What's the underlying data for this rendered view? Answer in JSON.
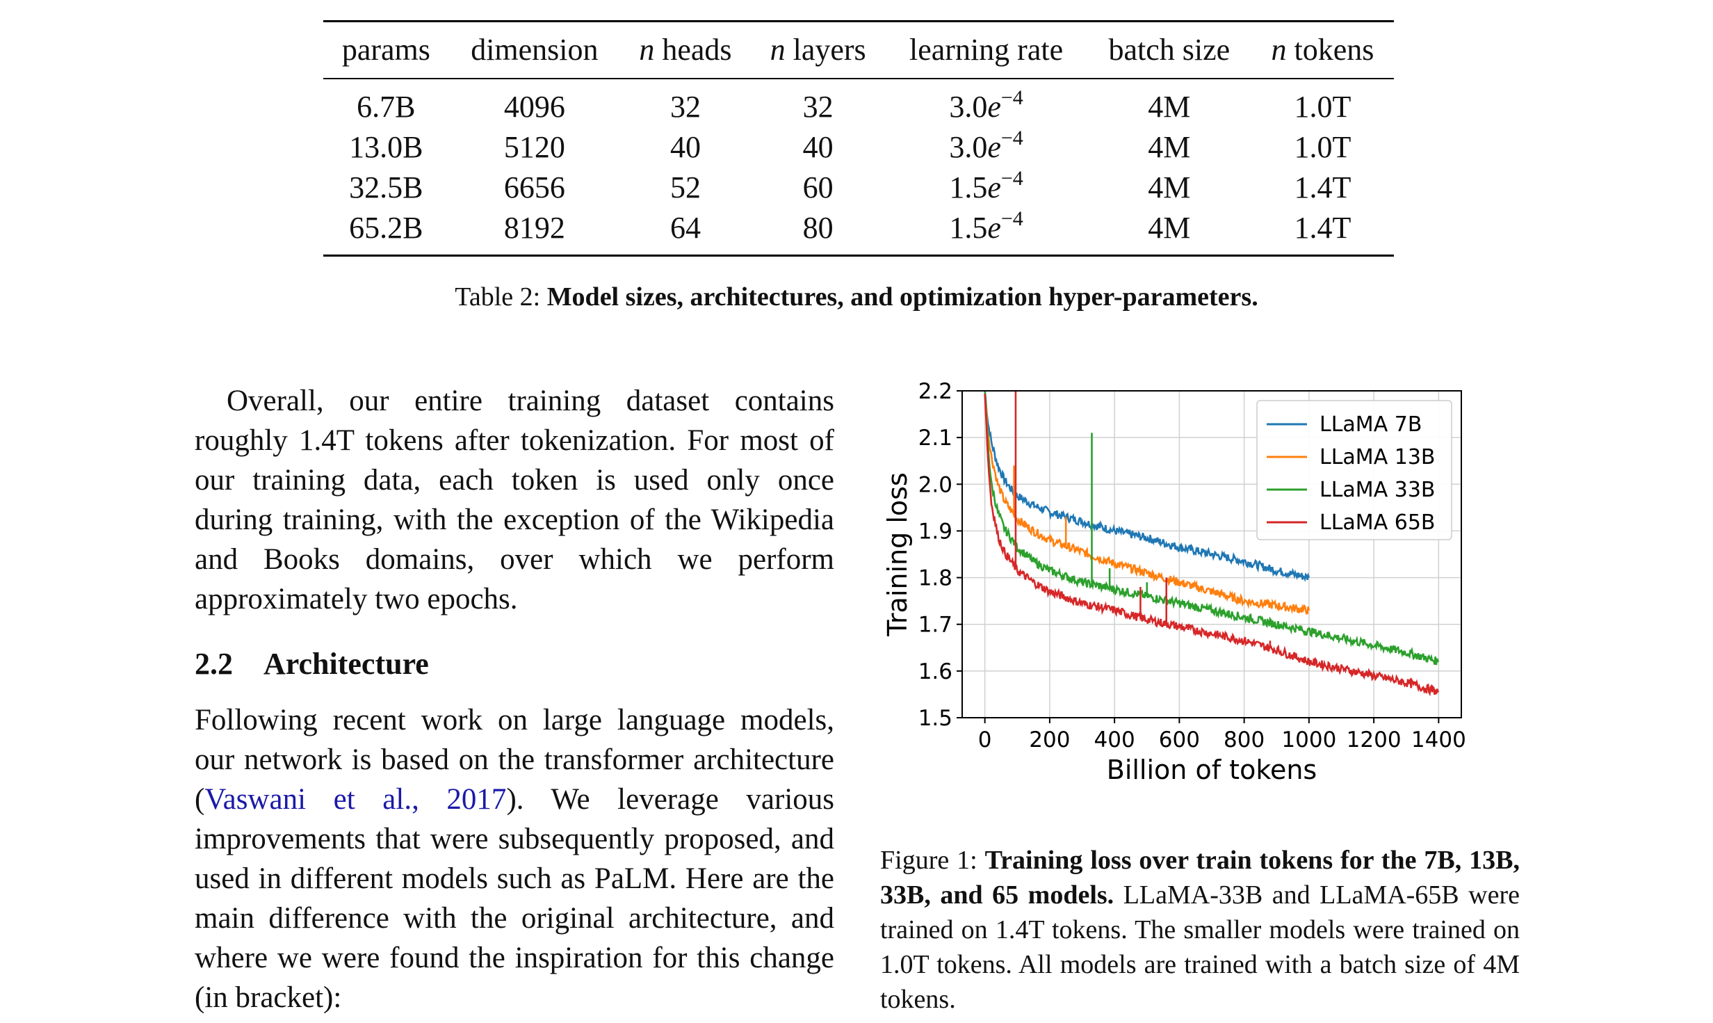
{
  "table": {
    "headers": [
      "params",
      "dimension",
      "n heads",
      "n layers",
      "learning rate",
      "batch size",
      "n tokens"
    ],
    "rows": [
      [
        "6.7B",
        "4096",
        "32",
        "32",
        "3.0e−4",
        "4M",
        "1.0T"
      ],
      [
        "13.0B",
        "5120",
        "40",
        "40",
        "3.0e−4",
        "4M",
        "1.0T"
      ],
      [
        "32.5B",
        "6656",
        "52",
        "60",
        "1.5e−4",
        "4M",
        "1.4T"
      ],
      [
        "65.2B",
        "8192",
        "64",
        "80",
        "1.5e−4",
        "4M",
        "1.4T"
      ]
    ],
    "caption_prefix": "Table 2: ",
    "caption_bold": "Model sizes, architectures, and optimization hyper-parameters."
  },
  "text": {
    "para1": "Overall, our entire training dataset contains roughly 1.4T tokens after tokenization. For most of our training data, each token is used only once during training, with the exception of the Wikipedia and Books domains, over which we perform approximately two epochs.",
    "section_number": "2.2",
    "section_title": "Architecture",
    "para2_before": "Following recent work on large language models, our network is based on the transformer architecture (",
    "para2_cite": "Vaswani et al., 2017",
    "para2_after": "). We leverage various improvements that were subsequently proposed, and used in different models such as PaLM. Here are the main difference with the original architecture, and where we were found the inspiration for this change (in bracket):"
  },
  "figure": {
    "caption_prefix": "Figure 1: ",
    "caption_bold": "Training loss over train tokens for the 7B, 13B, 33B, and 65 models.",
    "caption_rest": " LLaMA-33B and LLaMA-65B were trained on 1.4T tokens. The smaller models were trained on 1.0T tokens. All models are trained with a batch size of 4M tokens."
  },
  "chart_data": {
    "type": "line",
    "title": "",
    "xlabel": "Billion of tokens",
    "ylabel": "Training loss",
    "xlim": [
      -70,
      1470
    ],
    "ylim": [
      1.5,
      2.2
    ],
    "xticks": [
      0,
      200,
      400,
      600,
      800,
      1000,
      1200,
      1400
    ],
    "yticks": [
      1.5,
      1.6,
      1.7,
      1.8,
      1.9,
      2.0,
      2.1,
      2.2
    ],
    "xtick_labels": [
      "0",
      "200",
      "400",
      "600",
      "800",
      "1000",
      "1200",
      "1400"
    ],
    "ytick_labels": [
      "1.5",
      "1.6",
      "1.7",
      "1.8",
      "1.9",
      "2.0",
      "2.1",
      "2.2"
    ],
    "grid": true,
    "legend_position": "top-right",
    "series": [
      {
        "name": "LLaMA 7B",
        "color": "#1f77b4",
        "x": [
          0,
          10,
          20,
          40,
          60,
          80,
          100,
          150,
          200,
          300,
          400,
          500,
          600,
          700,
          800,
          900,
          1000
        ],
        "y": [
          2.2,
          2.13,
          2.09,
          2.04,
          2.01,
          1.99,
          1.975,
          1.955,
          1.94,
          1.92,
          1.9,
          1.885,
          1.865,
          1.85,
          1.835,
          1.815,
          1.8
        ],
        "spikes": []
      },
      {
        "name": "LLaMA 13B",
        "color": "#ff7f0e",
        "x": [
          0,
          10,
          20,
          40,
          60,
          80,
          100,
          150,
          200,
          300,
          400,
          500,
          600,
          700,
          800,
          900,
          1000
        ],
        "y": [
          2.2,
          2.11,
          2.06,
          2.0,
          1.965,
          1.945,
          1.925,
          1.9,
          1.88,
          1.855,
          1.83,
          1.81,
          1.79,
          1.77,
          1.75,
          1.74,
          1.73
        ],
        "spikes": [
          {
            "x": 90,
            "y": 2.04
          },
          {
            "x": 250,
            "y": 1.93
          }
        ]
      },
      {
        "name": "LLaMA 33B",
        "color": "#2ca02c",
        "x": [
          0,
          10,
          20,
          40,
          60,
          80,
          100,
          150,
          200,
          300,
          400,
          500,
          600,
          700,
          800,
          900,
          1000,
          1100,
          1200,
          1300,
          1400
        ],
        "y": [
          2.2,
          2.08,
          2.0,
          1.94,
          1.905,
          1.885,
          1.865,
          1.835,
          1.815,
          1.79,
          1.775,
          1.76,
          1.745,
          1.73,
          1.715,
          1.7,
          1.685,
          1.67,
          1.655,
          1.64,
          1.62
        ],
        "spikes": [
          {
            "x": 330,
            "y": 2.11
          },
          {
            "x": 385,
            "y": 1.82
          },
          {
            "x": 500,
            "y": 1.79
          }
        ]
      },
      {
        "name": "LLaMA 65B",
        "color": "#d62728",
        "x": [
          0,
          10,
          20,
          40,
          60,
          80,
          100,
          150,
          200,
          300,
          400,
          500,
          600,
          700,
          800,
          900,
          1000,
          1100,
          1200,
          1300,
          1400
        ],
        "y": [
          2.2,
          2.05,
          1.96,
          1.89,
          1.855,
          1.835,
          1.815,
          1.79,
          1.77,
          1.745,
          1.73,
          1.71,
          1.695,
          1.68,
          1.665,
          1.645,
          1.62,
          1.605,
          1.59,
          1.575,
          1.555
        ],
        "spikes": [
          {
            "x": 95,
            "y": 2.2
          },
          {
            "x": 480,
            "y": 1.78
          },
          {
            "x": 560,
            "y": 1.8
          },
          {
            "x": 880,
            "y": 1.665
          }
        ]
      }
    ]
  }
}
